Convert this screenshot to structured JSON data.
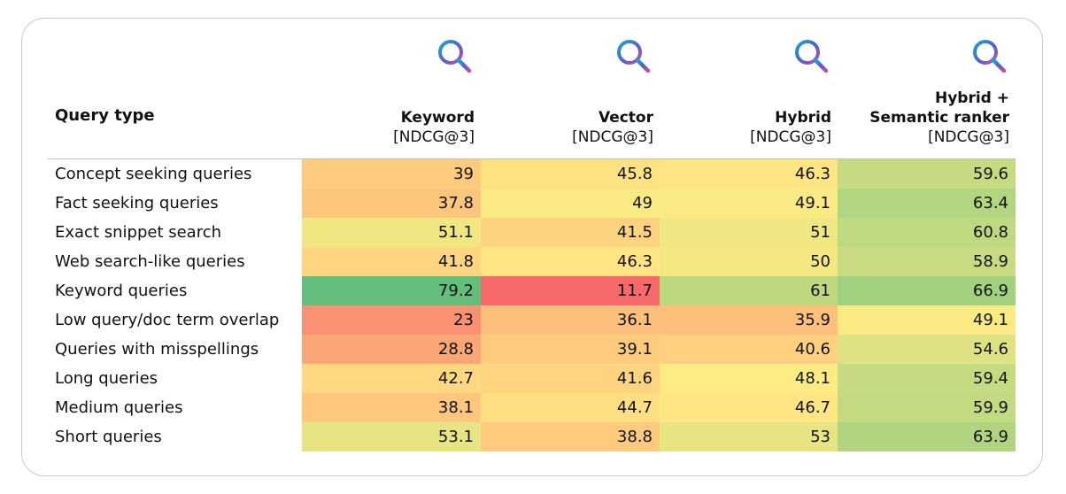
{
  "chart_data": {
    "type": "heatmap",
    "row_header": "Query type",
    "columns": [
      {
        "lines": [
          "Keyword",
          "[NDCG@3]"
        ]
      },
      {
        "lines": [
          "Vector",
          "[NDCG@3]"
        ]
      },
      {
        "lines": [
          "Hybrid",
          "[NDCG@3]"
        ]
      },
      {
        "lines": [
          "Hybrid +",
          "Semantic ranker",
          "[NDCG@3]"
        ]
      }
    ],
    "rows": [
      {
        "label": "Concept seeking queries",
        "values": [
          39,
          45.8,
          46.3,
          59.6
        ]
      },
      {
        "label": "Fact seeking queries",
        "values": [
          37.8,
          49,
          49.1,
          63.4
        ]
      },
      {
        "label": "Exact snippet search",
        "values": [
          51.1,
          41.5,
          51,
          60.8
        ]
      },
      {
        "label": "Web search-like queries",
        "values": [
          41.8,
          46.3,
          50,
          58.9
        ]
      },
      {
        "label": "Keyword queries",
        "values": [
          79.2,
          11.7,
          61,
          66.9
        ]
      },
      {
        "label": "Low query/doc term overlap",
        "values": [
          23,
          36.1,
          35.9,
          49.1
        ]
      },
      {
        "label": "Queries with misspellings",
        "values": [
          28.8,
          39.1,
          40.6,
          54.6
        ]
      },
      {
        "label": "Long queries",
        "values": [
          42.7,
          41.6,
          48.1,
          59.4
        ]
      },
      {
        "label": "Medium queries",
        "values": [
          38.1,
          44.7,
          46.7,
          59.9
        ]
      },
      {
        "label": "Short queries",
        "values": [
          53.1,
          38.8,
          53,
          63.9
        ]
      }
    ],
    "color_scale": {
      "low": "#f8696b",
      "mid": "#ffeb84",
      "high": "#63be7b"
    },
    "icon": "search-icon"
  }
}
